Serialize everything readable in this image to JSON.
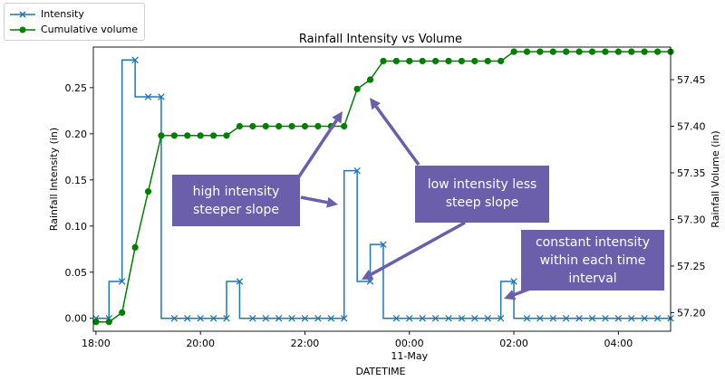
{
  "chart_data": {
    "type": "line",
    "title": "Rainfall Intensity vs Volume",
    "xlabel": "DATETIME",
    "ylabel_left": "Rainfall Intensity (in)",
    "ylabel_right": "Rainfall Volume (in)",
    "xlim": [
      -0.05,
      11.0
    ],
    "ylim_left": [
      -0.014,
      0.294
    ],
    "ylim_right": [
      57.18,
      57.485
    ],
    "x_ticks": [
      {
        "x": 0,
        "label": "18:00",
        "sub": ""
      },
      {
        "x": 2,
        "label": "20:00",
        "sub": ""
      },
      {
        "x": 4,
        "label": "22:00",
        "sub": ""
      },
      {
        "x": 6,
        "label": "00:00",
        "sub": "11-May"
      },
      {
        "x": 8,
        "label": "02:00",
        "sub": ""
      },
      {
        "x": 10,
        "label": "04:00",
        "sub": ""
      }
    ],
    "y_ticks_left": [
      "0.00",
      "0.05",
      "0.10",
      "0.15",
      "0.20",
      "0.25"
    ],
    "y_ticks_right": [
      "57.20",
      "57.25",
      "57.30",
      "57.35",
      "57.40",
      "57.45"
    ],
    "legend_position": "outside-top-left",
    "series": [
      {
        "name": "Intensity",
        "axis": "left",
        "color": "#1f77b4",
        "marker": "x",
        "step": "pre",
        "points": [
          [
            0.0,
            0.0
          ],
          [
            0.25,
            0.0
          ],
          [
            0.5,
            0.04
          ],
          [
            0.75,
            0.28
          ],
          [
            1.0,
            0.24
          ],
          [
            1.25,
            0.24
          ],
          [
            1.5,
            0.0
          ],
          [
            1.75,
            0.0
          ],
          [
            2.0,
            0.0
          ],
          [
            2.25,
            0.0
          ],
          [
            2.5,
            0.0
          ],
          [
            2.75,
            0.04
          ],
          [
            3.0,
            0.0
          ],
          [
            3.25,
            0.0
          ],
          [
            3.5,
            0.0
          ],
          [
            3.75,
            0.0
          ],
          [
            4.0,
            0.0
          ],
          [
            4.25,
            0.0
          ],
          [
            4.5,
            0.0
          ],
          [
            4.75,
            0.0
          ],
          [
            5.0,
            0.16
          ],
          [
            5.25,
            0.04
          ],
          [
            5.5,
            0.08
          ],
          [
            5.75,
            0.0
          ],
          [
            6.0,
            0.0
          ],
          [
            6.25,
            0.0
          ],
          [
            6.5,
            0.0
          ],
          [
            6.75,
            0.0
          ],
          [
            7.0,
            0.0
          ],
          [
            7.25,
            0.0
          ],
          [
            7.5,
            0.0
          ],
          [
            7.75,
            0.0
          ],
          [
            8.0,
            0.04
          ],
          [
            8.25,
            0.0
          ],
          [
            8.5,
            0.0
          ],
          [
            8.75,
            0.0
          ],
          [
            9.0,
            0.0
          ],
          [
            9.25,
            0.0
          ],
          [
            9.5,
            0.0
          ],
          [
            9.75,
            0.0
          ],
          [
            10.0,
            0.0
          ],
          [
            10.25,
            0.0
          ],
          [
            10.5,
            0.0
          ],
          [
            10.75,
            0.0
          ],
          [
            11.0,
            0.0
          ]
        ]
      },
      {
        "name": "Cumulative volume",
        "axis": "right",
        "color": "#008000",
        "marker": "o",
        "points": [
          [
            0.0,
            57.19
          ],
          [
            0.25,
            57.19
          ],
          [
            0.5,
            57.2
          ],
          [
            0.75,
            57.27
          ],
          [
            1.0,
            57.33
          ],
          [
            1.25,
            57.39
          ],
          [
            1.5,
            57.39
          ],
          [
            1.75,
            57.39
          ],
          [
            2.0,
            57.39
          ],
          [
            2.25,
            57.39
          ],
          [
            2.5,
            57.39
          ],
          [
            2.75,
            57.4
          ],
          [
            3.0,
            57.4
          ],
          [
            3.25,
            57.4
          ],
          [
            3.5,
            57.4
          ],
          [
            3.75,
            57.4
          ],
          [
            4.0,
            57.4
          ],
          [
            4.25,
            57.4
          ],
          [
            4.5,
            57.4
          ],
          [
            4.75,
            57.4
          ],
          [
            5.0,
            57.44
          ],
          [
            5.25,
            57.45
          ],
          [
            5.5,
            57.47
          ],
          [
            5.75,
            57.47
          ],
          [
            6.0,
            57.47
          ],
          [
            6.25,
            57.47
          ],
          [
            6.5,
            57.47
          ],
          [
            6.75,
            57.47
          ],
          [
            7.0,
            57.47
          ],
          [
            7.25,
            57.47
          ],
          [
            7.5,
            57.47
          ],
          [
            7.75,
            57.47
          ],
          [
            8.0,
            57.48
          ],
          [
            8.25,
            57.48
          ],
          [
            8.5,
            57.48
          ],
          [
            8.75,
            57.48
          ],
          [
            9.0,
            57.48
          ],
          [
            9.25,
            57.48
          ],
          [
            9.5,
            57.48
          ],
          [
            9.75,
            57.48
          ],
          [
            10.0,
            57.48
          ],
          [
            10.25,
            57.48
          ],
          [
            10.5,
            57.48
          ],
          [
            10.75,
            57.48
          ],
          [
            11.0,
            57.48
          ]
        ]
      }
    ],
    "annotations": [
      {
        "id": "high",
        "lines": [
          "high intensity",
          "steeper slope"
        ]
      },
      {
        "id": "low",
        "lines": [
          "low intensity less",
          "steep slope"
        ]
      },
      {
        "id": "constant",
        "lines": [
          "constant intensity",
          "within each time",
          "interval"
        ]
      }
    ],
    "annotation_color": "#6b5eab"
  }
}
